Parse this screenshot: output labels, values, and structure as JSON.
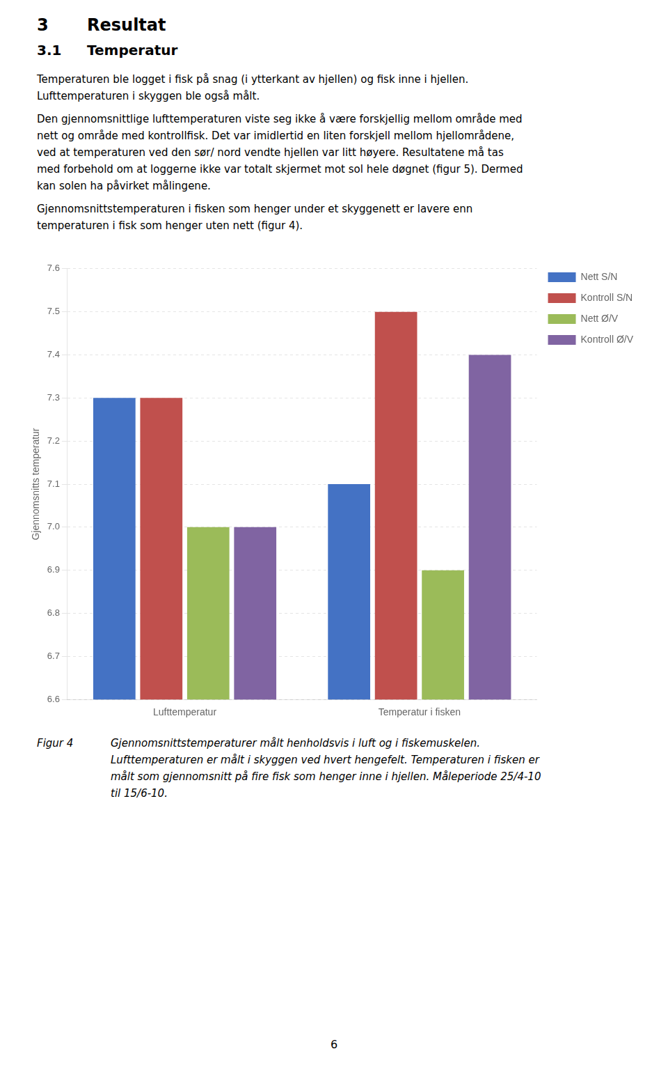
{
  "page_text": {
    "headings": [
      {
        "number": "3",
        "text": "Resultat"
      },
      {
        "number": "3.1",
        "text": "Temperatur"
      }
    ],
    "paragraphs": [
      [
        "Temperaturen ble logget i fisk på snag (i ytterkant av hjellen) og fisk inne i hjellen.",
        "Lufttemperaturen i skyggen ble også målt."
      ],
      [
        "Den gjennomsnittlige lufttemperaturen viste seg ikke å være forskjellig mellom område med",
        "nett og område med kontrollfisk. Det var imidlertid en liten forskjell mellom hjellområdene,",
        "ved at temperaturen ved den sør/ nord vendte hjellen var litt høyere. Resultatene må tas",
        "med forbehold om at loggerne ikke var totalt skjermet mot sol hele døgnet (figur 5). Dermed",
        "kan solen ha påvirket målingene."
      ],
      [
        "Gjennomsnittstemperaturen i fisken som henger under et skyggenett er lavere enn",
        "temperaturen i fisk som henger uten nett (figur 4)."
      ]
    ],
    "caption": {
      "label": "Figur 4",
      "lines": [
        "Gjennomsnittstemperaturer målt henholdsvis i luft og i fiskemuskelen.",
        "Lufttemperaturen er målt i skyggen ved hvert hengefelt. Temperaturen i fisken er",
        "målt som gjennomsnitt på fire fisk som henger inne i hjellen. Måleperiode 25/4-10",
        "til 15/6-10."
      ]
    },
    "page_number": "6"
  },
  "chart_data": {
    "type": "bar",
    "categories": [
      "Lufttemperatur",
      "Temperatur i fisken"
    ],
    "series": [
      {
        "name": "Nett S/N",
        "color": "#4472C4",
        "values": [
          7.3,
          7.1
        ]
      },
      {
        "name": "Kontroll S/N",
        "color": "#C0504D",
        "values": [
          7.3,
          7.5
        ]
      },
      {
        "name": "Nett Ø/V",
        "color": "#9BBB59",
        "values": [
          7.0,
          6.9
        ]
      },
      {
        "name": "Kontroll Ø/V",
        "color": "#8064A2",
        "values": [
          7.0,
          7.4
        ]
      }
    ],
    "ylabel": "Gjennomsnitts temperatur",
    "ylim": [
      6.6,
      7.6
    ],
    "yticks": [
      6.6,
      6.7,
      6.8,
      6.9,
      {
        "value": 7.0,
        "label": "7.0"
      },
      7.1,
      7.2,
      7.3,
      7.4,
      7.5,
      7.6
    ],
    "grid": true,
    "legend": "right"
  }
}
